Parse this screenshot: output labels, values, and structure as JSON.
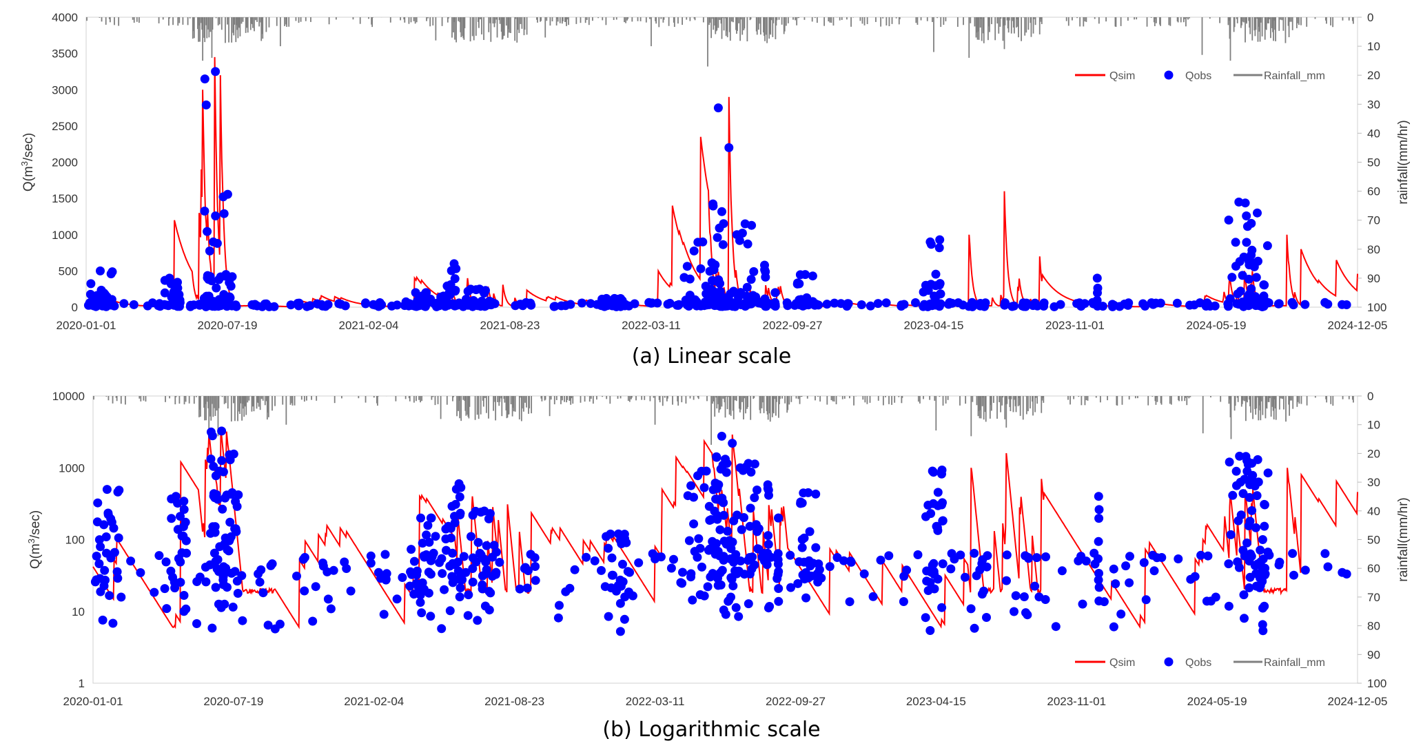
{
  "panels": [
    {
      "id": "a",
      "caption": "(a) Linear scale",
      "scale": "linear",
      "y_label_parts": [
        "Q(m",
        "3",
        "/sec)"
      ],
      "y2_label": "rainfall(mm/hr)",
      "legend": [
        "Qsim",
        "Qobs",
        "Rainfall_mm"
      ]
    },
    {
      "id": "b",
      "caption": "(b) Logarithmic scale",
      "scale": "log",
      "y_label_parts": [
        "Q(m",
        "3",
        "/sec)"
      ],
      "y2_label": "rainfall(mm/hr)",
      "legend": [
        "Qsim",
        "Qobs",
        "Rainfall_mm"
      ]
    }
  ],
  "chart_data": [
    {
      "type": "line",
      "title": "(a) Linear scale",
      "x_start": "2020-01-01",
      "x_end": "2024-12-05",
      "x_tick_labels": [
        "2020-01-01",
        "2020-07-19",
        "2021-02-04",
        "2021-08-23",
        "2022-03-11",
        "2022-09-27",
        "2023-04-15",
        "2023-11-01",
        "2024-05-19",
        "2024-12-05"
      ],
      "ylabel": "Q(m3/sec)",
      "y_scale": "linear",
      "ylim": [
        0,
        4000
      ],
      "y_ticks": [
        0,
        500,
        1000,
        1500,
        2000,
        2500,
        3000,
        3500,
        4000
      ],
      "y_tick_labels": [
        "0",
        "500",
        "1000",
        "1500",
        "2000",
        "2500",
        "3000",
        "3500",
        "4000"
      ],
      "y2label": "rainfall(mm/hr)",
      "y2lim": [
        0,
        100
      ],
      "y2_inverted": true,
      "y2_ticks": [
        0,
        10,
        20,
        30,
        40,
        50,
        60,
        70,
        80,
        90,
        100
      ],
      "y2_tick_labels": [
        "0",
        "10",
        "20",
        "30",
        "40",
        "50",
        "60",
        "70",
        "80",
        "90",
        "100"
      ],
      "legend_position": "top-right",
      "series": [
        {
          "name": "Qsim",
          "style": "line",
          "color": "#ff0000"
        },
        {
          "name": "Qobs",
          "style": "markers",
          "color": "#0000ff"
        },
        {
          "name": "Rainfall_mm",
          "style": "bars",
          "color": "#7f7f7f",
          "axis": "y2"
        }
      ],
      "qsim_peaks": [
        [
          125,
          1200
        ],
        [
          160,
          1300
        ],
        [
          163,
          1900
        ],
        [
          165,
          3000
        ],
        [
          172,
          1300
        ],
        [
          182,
          3450
        ],
        [
          190,
          3200
        ],
        [
          465,
          400
        ],
        [
          540,
          400
        ],
        [
          590,
          310
        ],
        [
          810,
          500
        ],
        [
          830,
          1400
        ],
        [
          870,
          2350
        ],
        [
          910,
          2900
        ],
        [
          1250,
          1000
        ],
        [
          1300,
          1600
        ],
        [
          1350,
          700
        ],
        [
          1640,
          500
        ],
        [
          1700,
          1000
        ],
        [
          1720,
          800
        ],
        [
          1770,
          650
        ],
        [
          1800,
          460
        ]
      ],
      "qobs_clusters": [
        [
          0,
          40,
          500
        ],
        [
          103,
          30,
          400
        ],
        [
          163,
          40,
          3250
        ],
        [
          170,
          20,
          900
        ],
        [
          188,
          20,
          450
        ],
        [
          451,
          60,
          200
        ],
        [
          506,
          30,
          600
        ],
        [
          537,
          40,
          250
        ],
        [
          728,
          40,
          120
        ],
        [
          843,
          60,
          900
        ],
        [
          880,
          30,
          2750
        ],
        [
          900,
          20,
          2200
        ],
        [
          918,
          30,
          1150
        ],
        [
          960,
          1,
          580
        ],
        [
          975,
          1,
          200
        ],
        [
          1003,
          30,
          450
        ],
        [
          1185,
          20,
          900
        ],
        [
          1208,
          1,
          930
        ],
        [
          1431,
          1,
          400
        ],
        [
          1612,
          40,
          1450
        ],
        [
          1643,
          30,
          1300
        ],
        [
          1660,
          10,
          100
        ]
      ],
      "rain_major": [
        [
          165,
          15
        ],
        [
          178,
          14
        ],
        [
          275,
          10
        ],
        [
          495,
          8
        ],
        [
          650,
          7
        ],
        [
          800,
          10
        ],
        [
          880,
          17
        ],
        [
          1200,
          12
        ],
        [
          1250,
          14
        ],
        [
          1300,
          11
        ],
        [
          1580,
          13
        ],
        [
          1620,
          15
        ]
      ]
    },
    {
      "type": "line",
      "title": "(b) Logarithmic scale",
      "x_start": "2020-01-01",
      "x_end": "2024-12-05",
      "x_tick_labels": [
        "2020-01-01",
        "2020-07-19",
        "2021-02-04",
        "2021-08-23",
        "2022-03-11",
        "2022-09-27",
        "2023-04-15",
        "2023-11-01",
        "2024-05-19",
        "2024-12-05"
      ],
      "ylabel": "Q(m3/sec)",
      "y_scale": "log",
      "ylim": [
        1,
        10000
      ],
      "y_ticks": [
        1,
        10,
        100,
        1000,
        10000
      ],
      "y_tick_labels": [
        "1",
        "10",
        "100",
        "1000",
        "10000"
      ],
      "y2label": "rainfall(mm/hr)",
      "y2lim": [
        0,
        100
      ],
      "y2_inverted": true,
      "y2_ticks": [
        0,
        10,
        20,
        30,
        40,
        50,
        60,
        70,
        80,
        90,
        100
      ],
      "y2_tick_labels": [
        "0",
        "10",
        "20",
        "30",
        "40",
        "50",
        "60",
        "70",
        "80",
        "90",
        "100"
      ],
      "legend_position": "bottom-right",
      "series": [
        {
          "name": "Qsim",
          "style": "line",
          "color": "#ff0000"
        },
        {
          "name": "Qobs",
          "style": "markers",
          "color": "#0000ff"
        },
        {
          "name": "Rainfall_mm",
          "style": "bars",
          "color": "#7f7f7f",
          "axis": "y2"
        }
      ],
      "qsim_peaks": [
        [
          125,
          1200
        ],
        [
          160,
          1300
        ],
        [
          163,
          1900
        ],
        [
          165,
          3000
        ],
        [
          172,
          1300
        ],
        [
          182,
          3450
        ],
        [
          190,
          3200
        ],
        [
          465,
          400
        ],
        [
          540,
          400
        ],
        [
          590,
          310
        ],
        [
          810,
          500
        ],
        [
          830,
          1400
        ],
        [
          870,
          2350
        ],
        [
          910,
          2900
        ],
        [
          1250,
          1000
        ],
        [
          1300,
          1600
        ],
        [
          1350,
          700
        ],
        [
          1640,
          500
        ],
        [
          1700,
          1000
        ],
        [
          1720,
          800
        ],
        [
          1770,
          650
        ],
        [
          1800,
          460
        ]
      ],
      "qobs_clusters": [
        [
          0,
          40,
          500
        ],
        [
          103,
          30,
          400
        ],
        [
          163,
          40,
          3250
        ],
        [
          170,
          20,
          900
        ],
        [
          188,
          20,
          450
        ],
        [
          451,
          60,
          200
        ],
        [
          506,
          30,
          600
        ],
        [
          537,
          40,
          250
        ],
        [
          728,
          40,
          120
        ],
        [
          843,
          60,
          900
        ],
        [
          880,
          30,
          2750
        ],
        [
          900,
          20,
          2200
        ],
        [
          918,
          30,
          1150
        ],
        [
          960,
          1,
          580
        ],
        [
          975,
          1,
          200
        ],
        [
          1003,
          30,
          450
        ],
        [
          1185,
          20,
          900
        ],
        [
          1208,
          1,
          930
        ],
        [
          1431,
          1,
          400
        ],
        [
          1612,
          40,
          1450
        ],
        [
          1643,
          30,
          1300
        ],
        [
          1660,
          10,
          100
        ]
      ],
      "rain_major": [
        [
          165,
          15
        ],
        [
          178,
          14
        ],
        [
          275,
          10
        ],
        [
          495,
          8
        ],
        [
          650,
          7
        ],
        [
          800,
          10
        ],
        [
          880,
          17
        ],
        [
          1200,
          12
        ],
        [
          1250,
          14
        ],
        [
          1300,
          11
        ],
        [
          1580,
          13
        ],
        [
          1620,
          15
        ]
      ]
    }
  ]
}
